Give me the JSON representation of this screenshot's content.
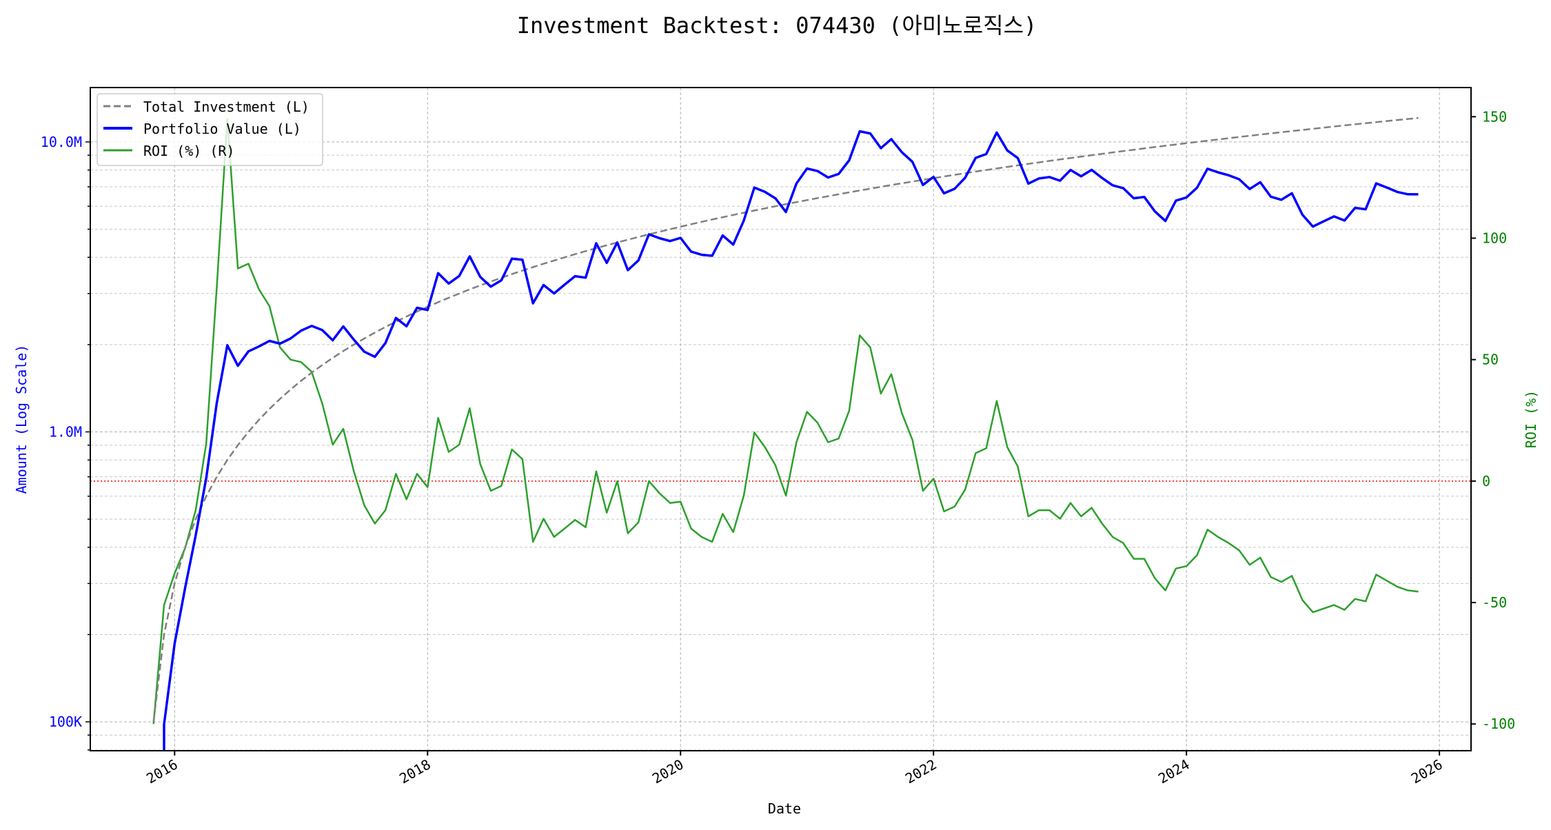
{
  "chart_data": {
    "type": "line",
    "title": "Investment Backtest: 074430 (아미노로직스)",
    "xlabel": "Date",
    "ylabel_left": "Amount (Log Scale)",
    "ylabel_right": "ROI (%)",
    "left_scale": "log",
    "left_ticks": [
      {
        "value": 100000,
        "label": "100K"
      },
      {
        "value": 1000000,
        "label": "1.0M"
      },
      {
        "value": 10000000,
        "label": "10.0M"
      }
    ],
    "right_ticks": [
      -100,
      -50,
      0,
      50,
      100,
      150
    ],
    "x_ticks": [
      "2016",
      "2018",
      "2020",
      "2022",
      "2024",
      "2026"
    ],
    "xlim": [
      "2015-05",
      "2026-04"
    ],
    "ylim_left": [
      79500,
      15400000
    ],
    "ylim_right": [
      -111,
      162
    ],
    "grid": true,
    "legend_position": "upper-left",
    "reference_line": {
      "axis": "right",
      "value": 0,
      "color": "#ff0000",
      "style": "dotted"
    },
    "colors": {
      "investment": "#808080",
      "portfolio": "#0000ff",
      "roi": "#2ca02c",
      "left_axis": "#0000ff",
      "right_axis": "#008000"
    },
    "dates": [
      "2015-11",
      "2015-12",
      "2016-01",
      "2016-02",
      "2016-03",
      "2016-04",
      "2016-05",
      "2016-06",
      "2016-07",
      "2016-08",
      "2016-09",
      "2016-10",
      "2016-11",
      "2016-12",
      "2017-01",
      "2017-02",
      "2017-03",
      "2017-04",
      "2017-05",
      "2017-06",
      "2017-07",
      "2017-08",
      "2017-09",
      "2017-10",
      "2017-11",
      "2017-12",
      "2018-01",
      "2018-02",
      "2018-03",
      "2018-04",
      "2018-05",
      "2018-06",
      "2018-07",
      "2018-08",
      "2018-09",
      "2018-10",
      "2018-11",
      "2018-12",
      "2019-01",
      "2019-02",
      "2019-03",
      "2019-04",
      "2019-05",
      "2019-06",
      "2019-07",
      "2019-08",
      "2019-09",
      "2019-10",
      "2019-11",
      "2019-12",
      "2020-01",
      "2020-02",
      "2020-03",
      "2020-04",
      "2020-05",
      "2020-06",
      "2020-07",
      "2020-08",
      "2020-09",
      "2020-10",
      "2020-11",
      "2020-12",
      "2021-01",
      "2021-02",
      "2021-03",
      "2021-04",
      "2021-05",
      "2021-06",
      "2021-07",
      "2021-08",
      "2021-09",
      "2021-10",
      "2021-11",
      "2021-12",
      "2022-01",
      "2022-02",
      "2022-03",
      "2022-04",
      "2022-05",
      "2022-06",
      "2022-07",
      "2022-08",
      "2022-09",
      "2022-10",
      "2022-11",
      "2022-12",
      "2023-01",
      "2023-02",
      "2023-03",
      "2023-04",
      "2023-05",
      "2023-06",
      "2023-07",
      "2023-08",
      "2023-09",
      "2023-10",
      "2023-11",
      "2023-12",
      "2024-01",
      "2024-02",
      "2024-03",
      "2024-04",
      "2024-05",
      "2024-06",
      "2024-07",
      "2024-08",
      "2024-09",
      "2024-10",
      "2024-11",
      "2024-12",
      "2025-01",
      "2025-02",
      "2025-03",
      "2025-04",
      "2025-05",
      "2025-06",
      "2025-07",
      "2025-08",
      "2025-09",
      "2025-10",
      "2025-11"
    ],
    "series": [
      {
        "name": "Total Investment (L)",
        "axis": "left",
        "style": "dashed",
        "values": [
          100000,
          200000,
          300000,
          400000,
          500000,
          600000,
          700000,
          800000,
          900000,
          1000000,
          1100000,
          1200000,
          1300000,
          1400000,
          1500000,
          1600000,
          1700000,
          1800000,
          1900000,
          2000000,
          2100000,
          2200000,
          2300000,
          2400000,
          2500000,
          2600000,
          2700000,
          2800000,
          2900000,
          3000000,
          3100000,
          3200000,
          3300000,
          3400000,
          3500000,
          3600000,
          3700000,
          3800000,
          3900000,
          4000000,
          4100000,
          4200000,
          4300000,
          4400000,
          4500000,
          4600000,
          4700000,
          4800000,
          4900000,
          5000000,
          5100000,
          5200000,
          5300000,
          5400000,
          5500000,
          5600000,
          5700000,
          5800000,
          5900000,
          6000000,
          6100000,
          6200000,
          6300000,
          6400000,
          6500000,
          6600000,
          6700000,
          6800000,
          6900000,
          7000000,
          7100000,
          7200000,
          7300000,
          7400000,
          7500000,
          7600000,
          7700000,
          7800000,
          7900000,
          8000000,
          8100000,
          8200000,
          8300000,
          8400000,
          8500000,
          8600000,
          8700000,
          8800000,
          8900000,
          9000000,
          9100000,
          9200000,
          9300000,
          9400000,
          9500000,
          9600000,
          9700000,
          9800000,
          9900000,
          10000000,
          10100000,
          10200000,
          10300000,
          10400000,
          10500000,
          10600000,
          10700000,
          10800000,
          10900000,
          11000000,
          11100000,
          11200000,
          11300000,
          11400000,
          11500000,
          11600000,
          11700000,
          11800000,
          11900000,
          12000000,
          12100000
        ]
      },
      {
        "name": "Portfolio Value (L)",
        "axis": "left",
        "style": "solid",
        "values": [
          0,
          98000,
          186000,
          290000,
          440000,
          693000,
          1260000,
          1990000,
          1690000,
          1895000,
          1970000,
          2060000,
          2015000,
          2100000,
          2235000,
          2320000,
          2244000,
          2070000,
          2310000,
          2080000,
          1890000,
          1815000,
          2024000,
          2472000,
          2313000,
          2678000,
          2633000,
          3528000,
          3248000,
          3450000,
          4030000,
          3424000,
          3168000,
          3332000,
          3955000,
          3924000,
          2775000,
          3211000,
          3003000,
          3220000,
          3444000,
          3402000,
          4472000,
          3828000,
          4500000,
          3611000,
          3901000,
          4800000,
          4655000,
          4550000,
          4667000,
          4186000,
          4081000,
          4050000,
          4758000,
          4424000,
          5358000,
          6960000,
          6726000,
          6390000,
          5734000,
          7192000,
          8096000,
          7936000,
          7540000,
          7755000,
          8643000,
          10880000,
          10695000,
          9520000,
          10224000,
          9216000,
          8541000,
          7104000,
          7575000,
          6650000,
          6892000,
          7527000,
          8809000,
          9080000,
          10773000,
          9348000,
          8798000,
          7182000,
          7480000,
          7568000,
          7352000,
          8008000,
          7610000,
          8010000,
          7508000,
          7084000,
          6929000,
          6392000,
          6460000,
          5760000,
          5335000,
          6272000,
          6435000,
          6950000,
          8080000,
          7854000,
          7674000,
          7436000,
          6878000,
          7261000,
          6474000,
          6318000,
          6649000,
          5610000,
          5106000,
          5320000,
          5537000,
          5358000,
          5923000,
          5858000,
          7196000,
          6962000,
          6724000,
          6600000,
          6595000
        ]
      },
      {
        "name": "ROI (%) (R)",
        "axis": "right",
        "style": "solid",
        "values": [
          -100,
          -51,
          -38,
          -27.5,
          -12,
          15.5,
          80,
          149,
          87.5,
          89.5,
          79,
          72,
          55,
          50,
          49,
          45,
          32,
          15,
          21.5,
          4,
          -10,
          -17.5,
          -12,
          3,
          -7.5,
          3,
          -2.5,
          26,
          12,
          15,
          30,
          7,
          -4,
          -2,
          13,
          9,
          -25,
          -15.5,
          -23,
          -19.5,
          -16,
          -19,
          4,
          -13,
          0,
          -21.5,
          -17,
          0,
          -5,
          -9,
          -8.5,
          -19.5,
          -23,
          -25,
          -13.5,
          -21,
          -6,
          20,
          14,
          6.5,
          -6,
          16,
          28.5,
          24,
          16,
          17.5,
          29,
          60,
          55,
          36,
          44,
          28,
          17,
          -4,
          1,
          -12.5,
          -10.5,
          -3.5,
          11.5,
          13.5,
          33,
          14,
          6,
          -14.5,
          -12,
          -12,
          -15.5,
          -9,
          -14.5,
          -11,
          -17.5,
          -23,
          -25.5,
          -32,
          -32,
          -40,
          -45,
          -36,
          -35,
          -30.5,
          -20,
          -23,
          -25.5,
          -28.5,
          -34.5,
          -31.5,
          -39.5,
          -41.5,
          -39,
          -49,
          -54,
          -52.5,
          -51,
          -53,
          -48.5,
          -49.5,
          -38.5,
          -41,
          -43.5,
          -45,
          -45.5
        ]
      }
    ]
  }
}
